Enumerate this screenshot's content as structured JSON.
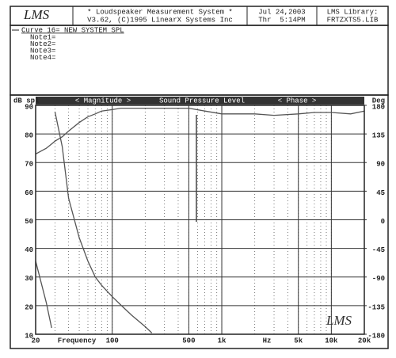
{
  "header": {
    "logo": "LMS",
    "title_line1": "* Loudspeaker Measurement System *",
    "title_line2": "V3.62, (C)1995 LinearX Systems Inc",
    "date": "Jul 24,2003",
    "time": "Thr  5:14PM",
    "library_label": "LMS Library:",
    "library_file": "FRTZXTS5.LIB"
  },
  "notes": {
    "curve": "Curve 16= NEW SYSTEM SPL",
    "lines": [
      "Note1=",
      "Note2=",
      "Note3=",
      "Note4="
    ]
  },
  "chart_data": {
    "type": "line",
    "title": "Sound Pressure Level",
    "y_label": "dB spl",
    "y2_label": "Deg",
    "x_label": "Frequency",
    "x_unit_label": "Hz",
    "watermark": "LMS",
    "xscale": "log",
    "grid": true,
    "xlim": [
      20,
      20000
    ],
    "xticks": [
      20,
      100,
      500,
      {
        "value": 1000,
        "label": "1k"
      },
      {
        "value": 5000,
        "label": "5k"
      },
      {
        "value": 10000,
        "label": "10k"
      },
      {
        "value": 20000,
        "label": "20k"
      }
    ],
    "ylim": [
      10,
      90
    ],
    "yticks": [
      10,
      20,
      30,
      40,
      50,
      60,
      70,
      80,
      90
    ],
    "y2lim": [
      -180,
      180
    ],
    "y2ticks": [
      -180,
      -135,
      -90,
      -45,
      0,
      45,
      90,
      135,
      180
    ],
    "x": [
      20,
      25,
      28,
      29,
      30,
      35,
      40,
      50,
      60,
      70,
      80,
      100,
      120,
      150,
      200,
      230,
      300,
      500,
      700,
      1000,
      2000,
      3000,
      5000,
      7000,
      10000,
      15000,
      20000
    ],
    "series": [
      {
        "name": "< Magnitude >",
        "color": "#555555",
        "values": [
          73,
          75,
          76.5,
          77,
          77.5,
          79,
          81,
          84,
          86,
          87,
          88,
          88.5,
          89,
          89,
          89,
          89,
          89,
          89,
          88,
          87,
          87,
          86.5,
          87,
          87.5,
          87.5,
          87,
          88
        ]
      },
      {
        "name": "< Phase >",
        "color": "#555555",
        "axis": "y2",
        "values": [
          -65,
          -130,
          -170,
          null,
          170,
          115,
          34,
          -28,
          -65,
          -90,
          -103,
          -121,
          -134,
          -150,
          -168,
          -178,
          null,
          null,
          null,
          null,
          null,
          null,
          null,
          null,
          null,
          null,
          null
        ]
      }
    ]
  }
}
